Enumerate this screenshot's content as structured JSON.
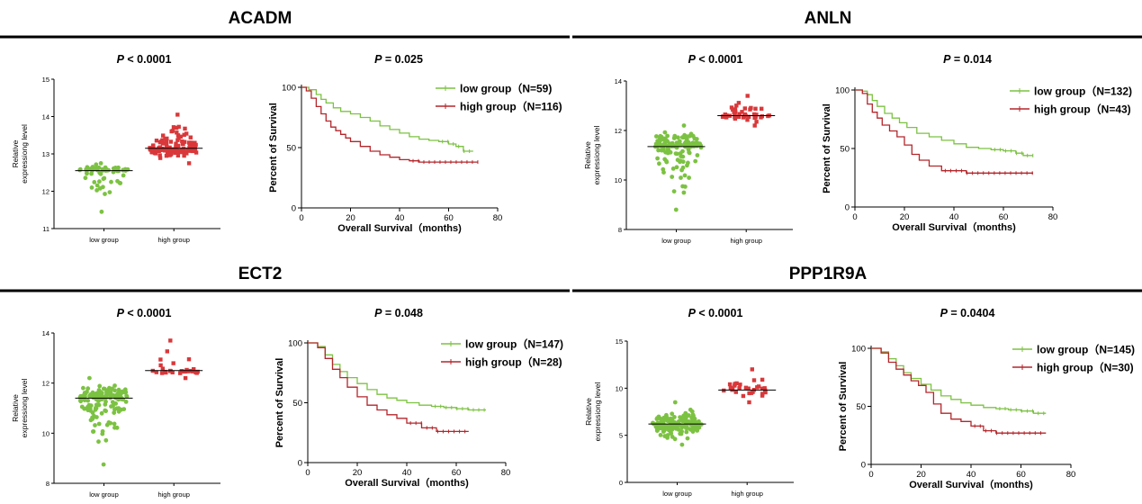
{
  "panels": [
    {
      "gene": "ACADM",
      "scatter": {
        "p_label": "P < 0.0001",
        "ylabel_line1": "Relative",
        "ylabel_line2": "expressiong level",
        "ylim": [
          11,
          15
        ],
        "yticks": [
          "11",
          "12",
          "13",
          "14",
          "15"
        ],
        "categories": [
          "low group",
          "high group"
        ],
        "low_median": 12.55,
        "high_median": 13.15,
        "low_points": 59,
        "high_points": 116,
        "low_range": [
          11.45,
          12.75
        ],
        "high_range": [
          12.75,
          14.05
        ]
      },
      "km": {
        "p_label": "P = 0.025",
        "ylabel": "Percent of Survival",
        "xlabel": "Overall Survival（months)",
        "xticks": [
          "0",
          "20",
          "40",
          "60",
          "80"
        ],
        "yticks": [
          "0",
          "50",
          "100"
        ],
        "legend": [
          "low group（N=59)",
          "high group（N=116)"
        ]
      }
    },
    {
      "gene": "ANLN",
      "scatter": {
        "p_label": "P < 0.0001",
        "ylabel_line1": "Relative",
        "ylabel_line2": "expressiong level",
        "ylim": [
          8,
          14
        ],
        "yticks": [
          "8",
          "10",
          "12",
          "14"
        ],
        "categories": [
          "low group",
          "high group"
        ],
        "low_median": 11.35,
        "high_median": 12.6,
        "low_points": 132,
        "high_points": 43,
        "low_range": [
          8.8,
          12.2
        ],
        "high_range": [
          12.2,
          13.4
        ]
      },
      "km": {
        "p_label": "P = 0.014",
        "ylabel": "Percent of Survival",
        "xlabel": "Overall Survival（months)",
        "xticks": [
          "0",
          "20",
          "40",
          "60",
          "80"
        ],
        "yticks": [
          "0",
          "50",
          "100"
        ],
        "legend": [
          "low group（N=132)",
          "high group（N=43)"
        ]
      }
    },
    {
      "gene": "ECT2",
      "scatter": {
        "p_label": "P < 0.0001",
        "ylabel_line1": "Relative",
        "ylabel_line2": "expressiong level",
        "ylim": [
          8,
          14
        ],
        "yticks": [
          "8",
          "10",
          "12",
          "14"
        ],
        "categories": [
          "low group",
          "high group"
        ],
        "low_median": 11.4,
        "high_median": 12.5,
        "low_points": 147,
        "high_points": 28,
        "low_range": [
          8.75,
          12.2
        ],
        "high_range": [
          12.2,
          13.7
        ]
      },
      "km": {
        "p_label": "P = 0.048",
        "ylabel": "Percent of Survival",
        "xlabel": "Overall Survival（months)",
        "xticks": [
          "0",
          "20",
          "40",
          "60",
          "80"
        ],
        "yticks": [
          "0",
          "50",
          "100"
        ],
        "legend": [
          "low group（N=147)",
          "high group（N=28)"
        ]
      }
    },
    {
      "gene": "PPP1R9A",
      "scatter": {
        "p_label": "P < 0.0001",
        "ylabel_line1": "Relative",
        "ylabel_line2": "expressiong level",
        "ylim": [
          0,
          15
        ],
        "yticks": [
          "0",
          "5",
          "10",
          "15"
        ],
        "categories": [
          "low group",
          "high group"
        ],
        "low_median": 6.2,
        "high_median": 9.8,
        "low_points": 145,
        "high_points": 30,
        "low_range": [
          4.0,
          8.5
        ],
        "high_range": [
          8.5,
          12.0
        ]
      },
      "km": {
        "p_label": "P = 0.0404",
        "ylabel": "Percent of Survival",
        "xlabel": "Overall Survival（months)",
        "xticks": [
          "0",
          "20",
          "40",
          "60",
          "80"
        ],
        "yticks": [
          "0",
          "50",
          "100"
        ],
        "legend": [
          "low group（N=145)",
          "high group（N=30)"
        ]
      }
    }
  ],
  "colors": {
    "low": "#7cc242",
    "high": "#d9383a",
    "high_line": "#b3262b",
    "axis": "#000000"
  },
  "chart_data": [
    {
      "type": "scatter",
      "panel": "ACADM",
      "categories": [
        "low group",
        "high group"
      ],
      "series": [
        {
          "name": "low group",
          "median": 12.55,
          "n": 59,
          "min": 11.45,
          "max": 12.75
        },
        {
          "name": "high group",
          "median": 13.15,
          "n": 116,
          "min": 12.75,
          "max": 14.05
        }
      ],
      "ylim": [
        11,
        15
      ]
    },
    {
      "type": "line",
      "panel": "ACADM",
      "xlabel": "Overall Survival（months)",
      "ylabel": "Percent of Survival",
      "xlim": [
        0,
        80
      ],
      "ylim": [
        0,
        100
      ],
      "series": [
        {
          "name": "low group（N=59)",
          "x": [
            0,
            3,
            6,
            8,
            10,
            13,
            16,
            20,
            24,
            28,
            32,
            36,
            40,
            44,
            48,
            52,
            56,
            60,
            63,
            66,
            70
          ],
          "y": [
            100,
            98,
            94,
            90,
            87,
            83,
            80,
            78,
            75,
            72,
            68,
            65,
            62,
            59,
            57,
            56,
            55,
            53,
            51,
            47,
            47
          ]
        },
        {
          "name": "high group（N=116)",
          "x": [
            0,
            2,
            4,
            6,
            8,
            10,
            12,
            14,
            16,
            18,
            20,
            24,
            28,
            32,
            36,
            40,
            44,
            48,
            55,
            62,
            72
          ],
          "y": [
            100,
            97,
            91,
            84,
            78,
            72,
            67,
            64,
            61,
            58,
            55,
            51,
            47,
            44,
            42,
            40,
            39,
            38,
            38,
            38,
            38
          ]
        }
      ]
    },
    {
      "type": "scatter",
      "panel": "ANLN",
      "categories": [
        "low group",
        "high group"
      ],
      "series": [
        {
          "name": "low group",
          "median": 11.35,
          "n": 132,
          "min": 8.8,
          "max": 12.2
        },
        {
          "name": "high group",
          "median": 12.6,
          "n": 43,
          "min": 12.2,
          "max": 13.4
        }
      ],
      "ylim": [
        8,
        14
      ]
    },
    {
      "type": "line",
      "panel": "ANLN",
      "xlabel": "Overall Survival（months)",
      "ylabel": "Percent of Survival",
      "xlim": [
        0,
        80
      ],
      "ylim": [
        0,
        100
      ],
      "series": [
        {
          "name": "low group（N=132)",
          "x": [
            0,
            3,
            5,
            7,
            9,
            12,
            15,
            18,
            21,
            25,
            30,
            35,
            40,
            45,
            50,
            55,
            60,
            65,
            68,
            72
          ],
          "y": [
            100,
            99,
            96,
            91,
            86,
            80,
            76,
            72,
            68,
            63,
            60,
            57,
            54,
            51,
            50,
            49,
            48,
            46,
            44,
            44
          ]
        },
        {
          "name": "high group（N=43)",
          "x": [
            0,
            3,
            5,
            7,
            9,
            11,
            14,
            17,
            20,
            23,
            26,
            30,
            35,
            45,
            55,
            65,
            72
          ],
          "y": [
            100,
            97,
            88,
            81,
            76,
            70,
            65,
            60,
            53,
            45,
            40,
            35,
            31,
            29,
            29,
            29,
            29
          ]
        }
      ]
    },
    {
      "type": "scatter",
      "panel": "ECT2",
      "categories": [
        "low group",
        "high group"
      ],
      "series": [
        {
          "name": "low group",
          "median": 11.4,
          "n": 147,
          "min": 8.75,
          "max": 12.2
        },
        {
          "name": "high group",
          "median": 12.5,
          "n": 28,
          "min": 12.2,
          "max": 13.7
        }
      ],
      "ylim": [
        8,
        14
      ]
    },
    {
      "type": "line",
      "panel": "ECT2",
      "xlabel": "Overall Survival（months)",
      "ylabel": "Percent of Survival",
      "xlim": [
        0,
        80
      ],
      "ylim": [
        0,
        100
      ],
      "series": [
        {
          "name": "low group（N=147)",
          "x": [
            0,
            4,
            7,
            10,
            13,
            16,
            20,
            24,
            28,
            32,
            36,
            40,
            45,
            50,
            55,
            60,
            65,
            72
          ],
          "y": [
            100,
            97,
            90,
            82,
            76,
            71,
            66,
            61,
            57,
            54,
            52,
            50,
            48,
            47,
            46,
            45,
            44,
            44
          ]
        },
        {
          "name": "high group（N=28)",
          "x": [
            0,
            4,
            7,
            10,
            13,
            16,
            20,
            24,
            28,
            32,
            36,
            40,
            46,
            52,
            58,
            65
          ],
          "y": [
            100,
            96,
            87,
            78,
            71,
            63,
            55,
            48,
            44,
            40,
            37,
            33,
            29,
            26,
            26,
            26
          ]
        }
      ]
    },
    {
      "type": "scatter",
      "panel": "PPP1R9A",
      "categories": [
        "low group",
        "high group"
      ],
      "series": [
        {
          "name": "low group",
          "median": 6.2,
          "n": 145,
          "min": 4.0,
          "max": 8.5
        },
        {
          "name": "high group",
          "median": 9.8,
          "n": 30,
          "min": 8.5,
          "max": 12.0
        }
      ],
      "ylim": [
        0,
        15
      ]
    },
    {
      "type": "line",
      "panel": "PPP1R9A",
      "xlabel": "Overall Survival（months)",
      "ylabel": "Percent of Survival",
      "xlim": [
        0,
        80
      ],
      "ylim": [
        0,
        100
      ],
      "series": [
        {
          "name": "low group（N=145)",
          "x": [
            0,
            4,
            7,
            10,
            13,
            16,
            20,
            24,
            28,
            32,
            36,
            40,
            45,
            50,
            55,
            60,
            65,
            70
          ],
          "y": [
            100,
            97,
            91,
            85,
            79,
            74,
            69,
            64,
            59,
            56,
            53,
            51,
            49,
            48,
            47,
            46,
            44,
            44
          ]
        },
        {
          "name": "high group（N=30)",
          "x": [
            0,
            4,
            7,
            10,
            13,
            16,
            19,
            22,
            25,
            28,
            32,
            36,
            40,
            45,
            50,
            60,
            70
          ],
          "y": [
            100,
            96,
            88,
            82,
            77,
            72,
            68,
            62,
            52,
            44,
            39,
            37,
            33,
            29,
            27,
            27,
            27
          ]
        }
      ]
    }
  ]
}
